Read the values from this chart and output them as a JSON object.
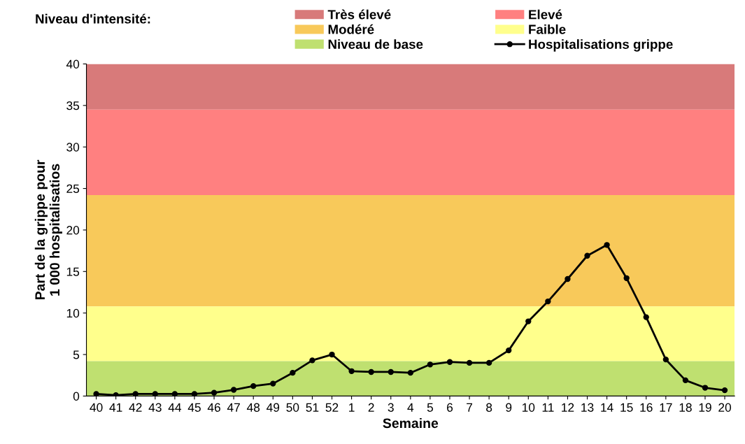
{
  "chart_data": {
    "type": "line",
    "xlabel": "Semaine",
    "ylabel": "Part de la grippe pour\n1 000 hospitalisatios",
    "legend_title": "Niveau d'intensité:",
    "categories": [
      "40",
      "41",
      "42",
      "43",
      "44",
      "45",
      "46",
      "47",
      "48",
      "49",
      "50",
      "51",
      "52",
      "1",
      "2",
      "3",
      "4",
      "5",
      "6",
      "7",
      "8",
      "9",
      "10",
      "11",
      "12",
      "13",
      "14",
      "15",
      "16",
      "17",
      "18",
      "19",
      "20"
    ],
    "series": [
      {
        "name": "Hospitalisations grippe",
        "color": "#000000",
        "values": [
          0.25,
          0.1,
          0.25,
          0.25,
          0.25,
          0.25,
          0.4,
          0.75,
          1.2,
          1.5,
          2.8,
          4.3,
          5.0,
          3.0,
          2.9,
          2.9,
          2.8,
          3.8,
          4.1,
          4.0,
          4.0,
          5.5,
          9.0,
          11.4,
          14.1,
          16.9,
          18.2,
          14.2,
          9.5,
          4.4,
          1.9,
          1.0,
          0.7
        ]
      }
    ],
    "bands": [
      {
        "axis": "y",
        "from": 34.5,
        "to": 40,
        "label": "Très élevé",
        "color": "#d87a7a"
      },
      {
        "axis": "y",
        "from": 24.2,
        "to": 34.5,
        "label": "Elevé",
        "color": "#ff8080"
      },
      {
        "axis": "y",
        "from": 10.8,
        "to": 24.2,
        "label": "Modéré",
        "color": "#f8c95a"
      },
      {
        "axis": "y",
        "from": 4.2,
        "to": 10.8,
        "label": "Faible",
        "color": "#ffff8c"
      },
      {
        "axis": "y",
        "from": 0,
        "to": 4.2,
        "label": "Niveau de base",
        "color": "#bfe070"
      }
    ],
    "ylim": [
      0,
      40
    ],
    "yticks": [
      0,
      5,
      10,
      15,
      20,
      25,
      30,
      35,
      40
    ],
    "grid": false,
    "legend": "top",
    "marker": "circle",
    "line_style": "solid"
  }
}
